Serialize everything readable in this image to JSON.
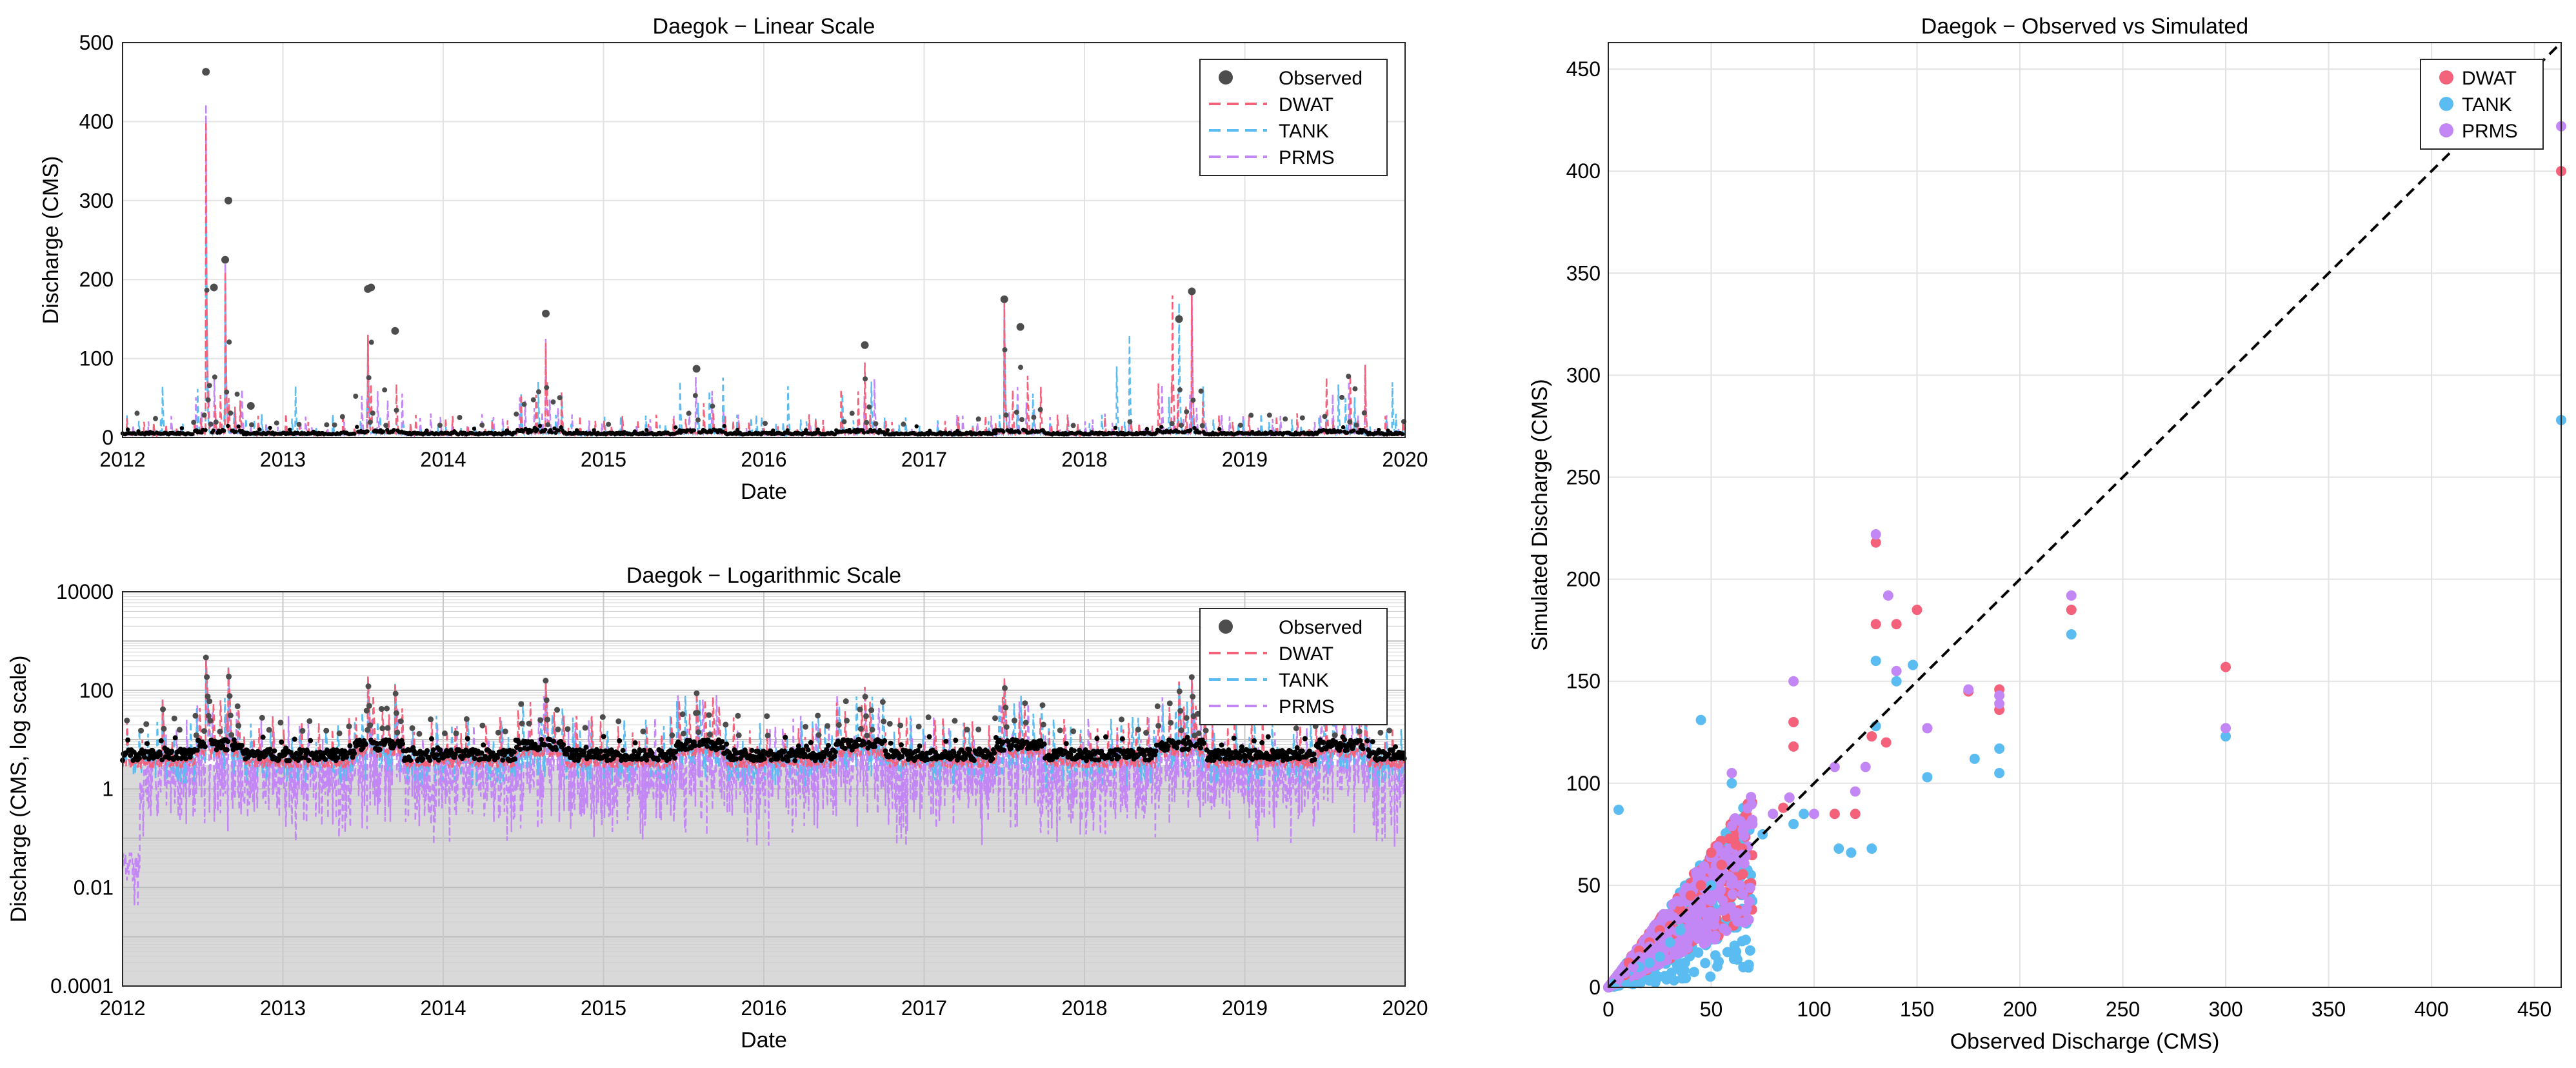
{
  "colors": {
    "observed": "#4d4d4d",
    "observed_log": "#000000",
    "dwat": "#f4617a",
    "tank": "#5bbcf2",
    "prms": "#c387f5",
    "grid": "#e3e3e3",
    "minor_grid": "#cfcfcf",
    "axis": "#262626",
    "one_to_one": "#000000"
  },
  "chart_data": [
    {
      "id": "linear",
      "type": "line",
      "title": "Daegok − Linear Scale",
      "xlabel": "Date",
      "ylabel": "Discharge (CMS)",
      "xlim": [
        2012,
        2020
      ],
      "ylim": [
        0,
        500
      ],
      "xticks": [
        "2012",
        "2013",
        "2014",
        "2015",
        "2016",
        "2017",
        "2018",
        "2019",
        "2020"
      ],
      "yticks": [
        "0",
        "100",
        "200",
        "300",
        "400",
        "500"
      ],
      "ytick_values": [
        0,
        100,
        200,
        300,
        400,
        500
      ],
      "grid": true,
      "legend_position": "top-right",
      "legend": [
        "Observed",
        "DWAT",
        "TANK",
        "PRMS"
      ],
      "series": [
        {
          "name": "Observed",
          "style": "markers",
          "x": [
            2012.52,
            2012.57,
            2012.64,
            2012.66,
            2012.8,
            2013.53,
            2013.55,
            2013.7,
            2014.64,
            2015.58,
            2016.63,
            2017.5,
            2017.6,
            2018.59,
            2018.67
          ],
          "y": [
            463,
            190,
            225,
            300,
            40,
            188,
            190,
            135,
            157,
            87,
            117,
            175,
            140,
            150,
            185
          ]
        },
        {
          "name": "DWAT",
          "style": "dashed",
          "x": [
            2012.52,
            2012.64,
            2013.53,
            2014.64,
            2016.63,
            2017.5,
            2018.55,
            2018.67,
            2019.75
          ],
          "y": [
            400,
            210,
            130,
            120,
            95,
            170,
            180,
            188,
            92
          ]
        },
        {
          "name": "TANK",
          "style": "dashed",
          "x": [
            2012.25,
            2012.52,
            2012.64,
            2013.08,
            2013.53,
            2016.15,
            2017.5,
            2018.2,
            2018.28,
            2018.59,
            2019.92
          ],
          "y": [
            65,
            278,
            205,
            65,
            125,
            65,
            160,
            90,
            130,
            170,
            70
          ]
        },
        {
          "name": "PRMS",
          "style": "dashed",
          "x": [
            2012.52,
            2012.64,
            2013.53,
            2014.64,
            2017.5,
            2018.67,
            2019.75
          ],
          "y": [
            422,
            220,
            130,
            125,
            175,
            190,
            92
          ]
        }
      ]
    },
    {
      "id": "log",
      "type": "line",
      "title": "Daegok − Logarithmic Scale",
      "xlabel": "Date",
      "ylabel": "Discharge (CMS, log scale)",
      "xlim": [
        2012,
        2020
      ],
      "ylim": [
        0.0001,
        10000
      ],
      "yscale": "log",
      "xticks": [
        "2012",
        "2013",
        "2014",
        "2015",
        "2016",
        "2017",
        "2018",
        "2019",
        "2020"
      ],
      "yticks": [
        "0.0001",
        "0.01",
        "1",
        "100",
        "10000"
      ],
      "ytick_values": [
        0.0001,
        0.01,
        1,
        100,
        10000
      ],
      "grid": true,
      "minor_grid": true,
      "legend_position": "top-right",
      "legend": [
        "Observed",
        "DWAT",
        "TANK",
        "PRMS"
      ],
      "baseflow_observed": 5,
      "baseflow_dwat": 3.5,
      "peak_events": [
        {
          "x": 2012.25,
          "y": 65
        },
        {
          "x": 2012.52,
          "y": 463
        },
        {
          "x": 2012.66,
          "y": 300
        },
        {
          "x": 2013.53,
          "y": 190
        },
        {
          "x": 2013.7,
          "y": 135
        },
        {
          "x": 2014.64,
          "y": 157
        },
        {
          "x": 2015.58,
          "y": 87
        },
        {
          "x": 2016.63,
          "y": 117
        },
        {
          "x": 2017.5,
          "y": 175
        },
        {
          "x": 2018.59,
          "y": 150
        },
        {
          "x": 2018.67,
          "y": 185
        },
        {
          "x": 2019.75,
          "y": 92
        }
      ]
    },
    {
      "id": "scatter",
      "type": "scatter",
      "title": "Daegok − Observed vs Simulated",
      "xlabel": "Observed Discharge (CMS)",
      "ylabel": "Simulated Discharge (CMS)",
      "xlim": [
        0,
        463
      ],
      "ylim": [
        0,
        463
      ],
      "xticks": [
        "0",
        "50",
        "100",
        "150",
        "200",
        "250",
        "300",
        "350",
        "400",
        "450"
      ],
      "yticks": [
        "0",
        "50",
        "100",
        "150",
        "200",
        "250",
        "300",
        "350",
        "400",
        "450"
      ],
      "tick_values": [
        0,
        50,
        100,
        150,
        200,
        250,
        300,
        350,
        400,
        450
      ],
      "grid": true,
      "legend_position": "top-right",
      "legend": [
        "DWAT",
        "TANK",
        "PRMS"
      ],
      "one_to_one_line": true,
      "series": [
        {
          "name": "DWAT",
          "points": [
            [
              463,
              400
            ],
            [
              300,
              157
            ],
            [
              225,
              185
            ],
            [
              190,
              136
            ],
            [
              190,
              146
            ],
            [
              175,
              145
            ],
            [
              150,
              185
            ],
            [
              140,
              178
            ],
            [
              135,
              120
            ],
            [
              130,
              178
            ],
            [
              130,
              218
            ],
            [
              128,
              123
            ],
            [
              120,
              85
            ],
            [
              110,
              85
            ],
            [
              90,
              130
            ],
            [
              90,
              118
            ],
            [
              85,
              88
            ],
            [
              70,
              80
            ],
            [
              65,
              68
            ],
            [
              62,
              70
            ],
            [
              55,
              60
            ],
            [
              50,
              66
            ],
            [
              45,
              50
            ],
            [
              40,
              45
            ],
            [
              35,
              38
            ],
            [
              30,
              30
            ],
            [
              25,
              28
            ],
            [
              20,
              22
            ],
            [
              15,
              18
            ],
            [
              10,
              12
            ],
            [
              8,
              6
            ],
            [
              5,
              4
            ]
          ]
        },
        {
          "name": "TANK",
          "points": [
            [
              463,
              278
            ],
            [
              300,
              123
            ],
            [
              225,
              173
            ],
            [
              190,
              105
            ],
            [
              190,
              117
            ],
            [
              178,
              112
            ],
            [
              155,
              103
            ],
            [
              148,
              158
            ],
            [
              140,
              150
            ],
            [
              130,
              160
            ],
            [
              130,
              128
            ],
            [
              128,
              68
            ],
            [
              118,
              66
            ],
            [
              112,
              68
            ],
            [
              95,
              85
            ],
            [
              90,
              80
            ],
            [
              75,
              75
            ],
            [
              60,
              100
            ],
            [
              55,
              60
            ],
            [
              50,
              50
            ],
            [
              45,
              131
            ],
            [
              40,
              45
            ],
            [
              35,
              28
            ],
            [
              30,
              22
            ],
            [
              25,
              15
            ],
            [
              20,
              12
            ],
            [
              15,
              10
            ],
            [
              10,
              8
            ],
            [
              5,
              87
            ],
            [
              8,
              3
            ],
            [
              3,
              2
            ]
          ]
        },
        {
          "name": "PRMS",
          "points": [
            [
              463,
              422
            ],
            [
              300,
              127
            ],
            [
              225,
              192
            ],
            [
              190,
              143
            ],
            [
              190,
              139
            ],
            [
              175,
              146
            ],
            [
              155,
              127
            ],
            [
              140,
              155
            ],
            [
              136,
              192
            ],
            [
              130,
              222
            ],
            [
              125,
              108
            ],
            [
              120,
              96
            ],
            [
              110,
              108
            ],
            [
              100,
              85
            ],
            [
              90,
              150
            ],
            [
              88,
              93
            ],
            [
              80,
              85
            ],
            [
              70,
              80
            ],
            [
              65,
              65
            ],
            [
              60,
              105
            ],
            [
              55,
              55
            ],
            [
              50,
              45
            ],
            [
              45,
              40
            ],
            [
              40,
              35
            ],
            [
              35,
              42
            ],
            [
              30,
              28
            ],
            [
              25,
              25
            ],
            [
              20,
              20
            ],
            [
              15,
              15
            ],
            [
              12,
              10
            ],
            [
              8,
              7
            ],
            [
              5,
              4
            ]
          ]
        }
      ],
      "dense_cloud": {
        "max_obs": 70,
        "count": 450
      }
    }
  ]
}
